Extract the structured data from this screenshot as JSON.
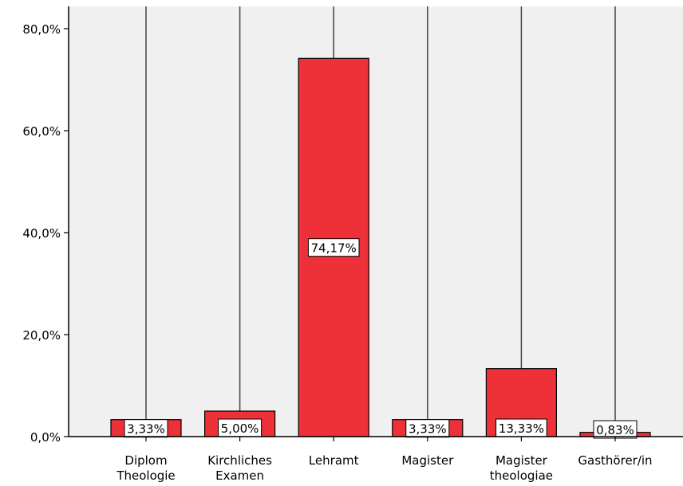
{
  "chart_data": {
    "type": "bar",
    "categories": [
      [
        "Diplom",
        "Theologie"
      ],
      [
        "Kirchliches",
        "Examen"
      ],
      [
        "Lehramt"
      ],
      [
        "Magister"
      ],
      [
        "Magister",
        "theologiae"
      ],
      [
        "Gasthörer/in"
      ]
    ],
    "values": [
      3.33,
      5.0,
      74.17,
      3.33,
      13.33,
      0.83
    ],
    "data_labels": [
      "3,33%",
      "5,00%",
      "74,17%",
      "3,33%",
      "13,33%",
      "0,83%"
    ],
    "ylim": [
      0,
      85
    ],
    "yticks": [
      0,
      20,
      40,
      60,
      80
    ],
    "ytick_labels": [
      "0,0%",
      "20,0%",
      "40,0%",
      "60,0%",
      "80,0%"
    ],
    "grid": "vertical lines at categories",
    "colors": {
      "bar": "#ee3038",
      "plot_bg": "#f0f0f0",
      "axis": "#000000",
      "grid": "#444444",
      "label_bg": "#ffffff"
    }
  }
}
